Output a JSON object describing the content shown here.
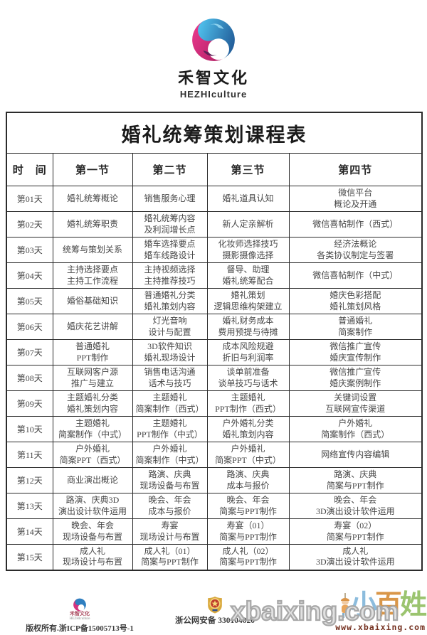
{
  "brand": {
    "name": "禾智文化",
    "subtitle": "HEZHIculture"
  },
  "colors": {
    "brand_pink": "#e62e84",
    "brand_pink_dark": "#5e2057",
    "brand_blue_light": "#4ab8e8",
    "brand_blue_dark": "#1b4d8c",
    "table_border": "#2b2b2b",
    "watermark_gray": "#a8a8a8",
    "watermark_url_red": "#74301f"
  },
  "table": {
    "title": "婚礼统筹策划课程表",
    "headers": [
      "时　间",
      "第一节",
      "第二节",
      "第三节",
      "第四节"
    ],
    "rows": [
      {
        "day": "第01天",
        "cells": [
          "婚礼统筹概论",
          "销售服务心理",
          "婚礼道具认知",
          "微信平台\n概论及开通"
        ]
      },
      {
        "day": "第02天",
        "cells": [
          "婚礼统筹职责",
          "婚礼统筹内容\n及利润增长点",
          "新人定亲解析",
          "微信喜帖制作（西式）"
        ]
      },
      {
        "day": "第03天",
        "cells": [
          "统筹与策划关系",
          "婚车选择要点\n婚车线路设计",
          "化妆师选择技巧\n摄影摄像选择",
          "经济法概论\n各类协议制定与签署"
        ]
      },
      {
        "day": "第04天",
        "cells": [
          "主持选择要点\n主持工作流程",
          "主持视频选择\n主持推荐技巧",
          "督导、助理\n婚礼统筹配合",
          "微信喜帖制作（中式）"
        ]
      },
      {
        "day": "第05天",
        "cells": [
          "婚俗基础知识",
          "普通婚礼分类\n婚礼策划内容",
          "婚礼策划\n逻辑思维构架建立",
          "婚庆色彩搭配\n婚礼策划风格"
        ]
      },
      {
        "day": "第06天",
        "cells": [
          "婚庆花艺讲解",
          "灯光音响\n设计与配置",
          "婚礼财务成本\n费用预提与待摊",
          "普通婚礼\n简案制作"
        ]
      },
      {
        "day": "第07天",
        "cells": [
          "普通婚礼\nPPT制作",
          "3D软件知识\n婚礼现场设计",
          "成本风险规避\n折旧与利润率",
          "微信推广宣传\n婚庆宣传制作"
        ]
      },
      {
        "day": "第08天",
        "cells": [
          "互联网客户源\n推广与建立",
          "销售电话沟通\n话术与技巧",
          "谈单前准备\n谈单技巧与话术",
          "微信推广宣传\n婚庆案例制作"
        ]
      },
      {
        "day": "第09天",
        "cells": [
          "主题婚礼分类\n婚礼策划内容",
          "主题婚礼\n简案制作（西式）",
          "主题婚礼\nPPT制作（西式）",
          "关键词设置\n互联网宣传渠道"
        ]
      },
      {
        "day": "第10天",
        "cells": [
          "主题婚礼\n简案制作（中式）",
          "主题婚礼\nPPT制作（中式）",
          "户外婚礼分类\n婚礼策划内容",
          "户外婚礼\n简案制作（西式）"
        ]
      },
      {
        "day": "第11天",
        "cells": [
          "户外婚礼\n简案PPT（西式）",
          "户外婚礼\n简案制作（中式）",
          "户外婚礼\n简案PPT（中式）",
          "网络宣传内容编辑"
        ]
      },
      {
        "day": "第12天",
        "cells": [
          "商业演出概论",
          "路演、庆典\n现场设备与布置",
          "路演、庆典\n成本与报价",
          "路演、庆典\n简案与PPT制作"
        ]
      },
      {
        "day": "第13天",
        "cells": [
          "路演、庆典3D\n演出设计软件运用",
          "晚会、年会\n成本与报价",
          "晚会、年会\n简案与PPT制作",
          "晚会、年会\n3D演出设计软件运用"
        ]
      },
      {
        "day": "第14天",
        "cells": [
          "晚会、年会\n现场设备与布置",
          "寿宴\n现场设计与布置",
          "寿宴（01）\n简案与PPT制作",
          "寿宴（02）\n简案与PPT制作"
        ]
      },
      {
        "day": "第15天",
        "cells": [
          "成人礼\n现场设计与布置",
          "成人礼（01）\n简案与PPT制作",
          "成人礼（02）\n简案与PPT制作",
          "成人礼\n3D演出设计软件运用"
        ]
      }
    ]
  },
  "footer": {
    "mini_brand_name": "禾智文化",
    "mini_brand_subtitle": "HEZHIculture",
    "copyright": "版权所有.浙ICP备15005713号-1",
    "security_text": "浙公网安备 330104020",
    "badge_icon_name": "police-badge-icon"
  },
  "watermark": {
    "big_text": "xbaixing.com",
    "url_text": "www.xbaixing.com",
    "glyphs": [
      {
        "char": "小",
        "color": "#86b9dc"
      },
      {
        "char": "百",
        "color": "#d8913f"
      },
      {
        "char": "姓",
        "color": "#96c168"
      }
    ]
  }
}
